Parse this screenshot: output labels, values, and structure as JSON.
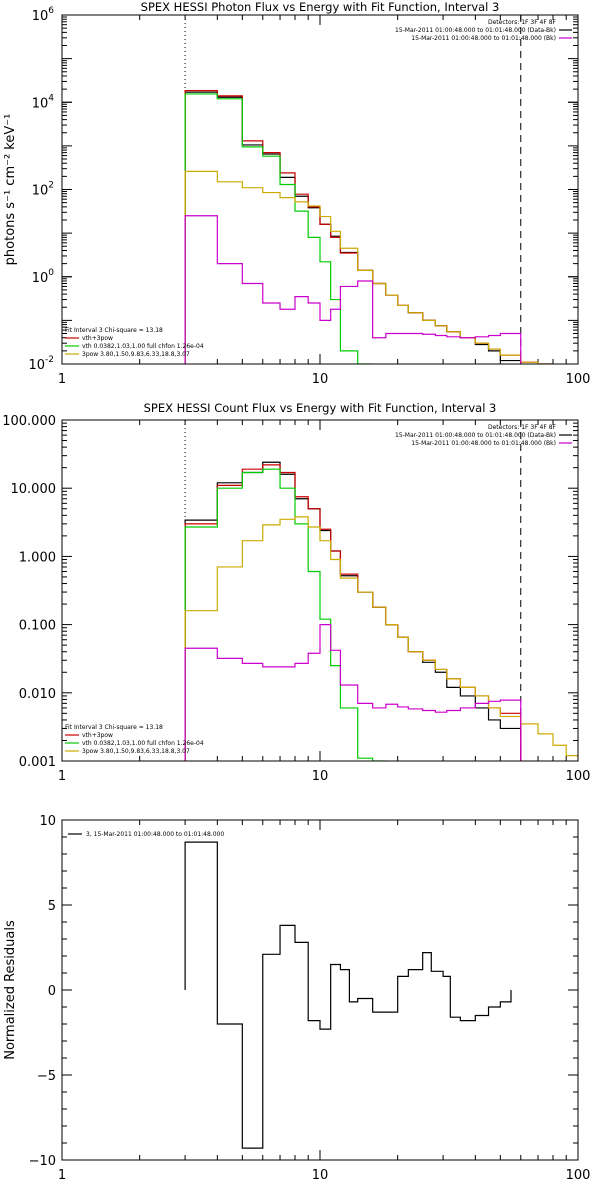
{
  "chart_data": [
    {
      "type": "line",
      "title": "SPEX HESSI Photon Flux vs Energy with Fit Function, Interval 3",
      "xlabel": "",
      "ylabel": "photons s⁻¹ cm⁻² keV⁻¹",
      "xscale": "log",
      "yscale": "log",
      "xlim": [
        1,
        100
      ],
      "ylim": [
        0.01,
        1000000
      ],
      "x_ticks": [
        {
          "value": 1,
          "label": "1"
        },
        {
          "value": 10,
          "label": "10"
        },
        {
          "value": 100,
          "label": "100"
        }
      ],
      "y_ticks": [
        {
          "value": 0.01,
          "base": "10",
          "exp": "-2"
        },
        {
          "value": 1,
          "base": "10",
          "exp": "0"
        },
        {
          "value": 100,
          "base": "10",
          "exp": "2"
        },
        {
          "value": 10000,
          "base": "10",
          "exp": "4"
        },
        {
          "value": 1000000,
          "base": "10",
          "exp": "6"
        }
      ],
      "legend_top_right": [
        {
          "text": "Detectors: 1F 3F 4F 8F",
          "color": "#000000"
        },
        {
          "text": "15-Mar-2011 01:00:48.000 to 01:01:48.000 (Data-Bk)",
          "color": "#000000"
        },
        {
          "text": "15-Mar-2011 01:00:48.000 to 01:01:48.000 (Bk)",
          "color": "#cc00cc"
        }
      ],
      "legend_bottom_left": [
        {
          "text": "Fit Interval 3   Chi-square = 13.18",
          "color": "#000000"
        },
        {
          "text": "vth+3pow",
          "color": "#cc0000"
        },
        {
          "text": "vth 0.0382,1.03,1.00  full chfon 1.26e-04",
          "color": "#00cc00"
        },
        {
          "text": "3pow 3.80,1.50,9.83,6.33,18.8,3.07",
          "color": "#ccaa00"
        }
      ],
      "markers": [
        {
          "x": 3,
          "style": "dotted"
        },
        {
          "x": 60,
          "style": "dashed"
        }
      ],
      "bin_edges": [
        3,
        4,
        5,
        6,
        7,
        8,
        9,
        10,
        11,
        12,
        14,
        16,
        18,
        20,
        22,
        25,
        28,
        31,
        35,
        40,
        45,
        50,
        60,
        70,
        80
      ],
      "series": [
        {
          "name": "Data-Bk",
          "color": "#000000",
          "values": [
            17000,
            13000,
            1050,
            650,
            190,
            70,
            38,
            16,
            8.5,
            3.6,
            1.4,
            0.7,
            0.38,
            0.22,
            0.15,
            0.1,
            0.075,
            0.055,
            0.04,
            0.028,
            0.02,
            0.012
          ]
        },
        {
          "name": "vth+3pow",
          "color": "#cc0000",
          "values": [
            18500,
            14000,
            1300,
            700,
            240,
            78,
            40,
            16,
            8,
            3.5,
            1.4,
            0.7,
            0.38,
            0.22,
            0.15,
            0.1,
            0.075,
            0.055,
            0.04,
            0.03,
            0.022,
            0.016,
            0.011,
            0.008
          ]
        },
        {
          "name": "vth",
          "color": "#00cc00",
          "values": [
            15500,
            12000,
            950,
            580,
            130,
            32,
            8,
            2.2,
            0.3,
            0.02,
            0.001
          ]
        },
        {
          "name": "3pow",
          "color": "#ccaa00",
          "values": [
            260,
            150,
            110,
            85,
            65,
            52,
            42,
            24,
            11,
            4.5,
            1.4,
            0.7,
            0.38,
            0.22,
            0.15,
            0.1,
            0.075,
            0.055,
            0.04,
            0.03,
            0.022,
            0.016,
            0.011,
            0.008
          ]
        },
        {
          "name": "Bk",
          "color": "#cc00cc",
          "values": [
            25,
            2,
            0.7,
            0.25,
            0.18,
            0.35,
            0.25,
            0.1,
            0.18,
            0.6,
            0.8,
            0.04,
            0.05,
            0.05,
            0.05,
            0.048,
            0.045,
            0.042,
            0.04,
            0.042,
            0.045,
            0.05
          ]
        }
      ]
    },
    {
      "type": "line",
      "title": "SPEX HESSI Count Flux vs Energy with Fit Function, Interval 3",
      "xlabel": "",
      "ylabel": "",
      "xscale": "log",
      "yscale": "log",
      "xlim": [
        1,
        100
      ],
      "ylim": [
        0.001,
        100
      ],
      "x_ticks": [
        {
          "value": 1,
          "label": "1"
        },
        {
          "value": 10,
          "label": "10"
        },
        {
          "value": 100,
          "label": "100"
        }
      ],
      "y_ticks": [
        {
          "value": 0.001,
          "label": "0.001"
        },
        {
          "value": 0.01,
          "label": "0.010"
        },
        {
          "value": 0.1,
          "label": "0.100"
        },
        {
          "value": 1,
          "label": "1.000"
        },
        {
          "value": 10,
          "label": "10.000"
        },
        {
          "value": 100,
          "label": "100.000"
        }
      ],
      "legend_top_right": [
        {
          "text": "Detectors: 1F 3F 4F 8F",
          "color": "#000000"
        },
        {
          "text": "15-Mar-2011 01:00:48.000 to 01:01:48.000 (Data-Bk)",
          "color": "#000000"
        },
        {
          "text": "15-Mar-2011 01:00:48.000 to 01:01:48.000 (Bk)",
          "color": "#cc00cc"
        }
      ],
      "legend_bottom_left": [
        {
          "text": "Fit Interval 3   Chi-square = 13.18",
          "color": "#000000"
        },
        {
          "text": "vth+3pow",
          "color": "#cc0000"
        },
        {
          "text": "vth 0.0382,1.03,1.00  full chfon 1.26e-04",
          "color": "#00cc00"
        },
        {
          "text": "3pow 3.80,1.50,9.83,6.33,18.8,3.07",
          "color": "#ccaa00"
        }
      ],
      "markers": [
        {
          "x": 3,
          "style": "dotted"
        },
        {
          "x": 60,
          "style": "dashed"
        }
      ],
      "bin_edges": [
        3,
        4,
        5,
        6,
        7,
        8,
        9,
        10,
        11,
        12,
        14,
        16,
        18,
        20,
        22,
        25,
        28,
        31,
        35,
        40,
        45,
        50,
        60,
        70,
        80,
        90,
        100
      ],
      "series": [
        {
          "name": "Data-Bk",
          "color": "#000000",
          "values": [
            3.4,
            12,
            17,
            24,
            16,
            7,
            5,
            2.4,
            1.2,
            0.52,
            0.3,
            0.18,
            0.1,
            0.065,
            0.04,
            0.028,
            0.02,
            0.012,
            0.009,
            0.006,
            0.004,
            0.003
          ]
        },
        {
          "name": "vth+3pow",
          "color": "#cc0000",
          "values": [
            3,
            11,
            19,
            22,
            17,
            7.5,
            5,
            2.5,
            1.2,
            0.55,
            0.3,
            0.18,
            0.1,
            0.065,
            0.04,
            0.03,
            0.022,
            0.016,
            0.012,
            0.009,
            0.006,
            0.005
          ]
        },
        {
          "name": "vth",
          "color": "#00cc00",
          "values": [
            2.7,
            10,
            17,
            19,
            10,
            3,
            0.6,
            0.12,
            0.025,
            0.006,
            0.0011,
            0.0005
          ]
        },
        {
          "name": "3pow",
          "color": "#ccaa00",
          "values": [
            0.16,
            0.7,
            1.7,
            2.9,
            3.5,
            3.8,
            2.7,
            1.7,
            0.9,
            0.48,
            0.3,
            0.18,
            0.1,
            0.065,
            0.04,
            0.03,
            0.022,
            0.016,
            0.012,
            0.009,
            0.006,
            0.0045,
            0.0035,
            0.0025,
            0.0017,
            0.0012
          ]
        },
        {
          "name": "Bk",
          "color": "#cc00cc",
          "values": [
            0.045,
            0.032,
            0.027,
            0.024,
            0.024,
            0.027,
            0.038,
            0.1,
            0.042,
            0.013,
            0.007,
            0.006,
            0.0068,
            0.0062,
            0.0058,
            0.0055,
            0.0052,
            0.0055,
            0.006,
            0.007,
            0.0075,
            0.0078
          ]
        }
      ]
    },
    {
      "type": "line",
      "title": "",
      "xlabel": "",
      "ylabel": "Normalized Residuals",
      "xscale": "log",
      "yscale": "linear",
      "xlim": [
        1,
        100
      ],
      "ylim": [
        -10,
        10
      ],
      "x_ticks": [
        {
          "value": 1,
          "label": "1"
        },
        {
          "value": 10,
          "label": "10"
        },
        {
          "value": 100,
          "label": "100"
        }
      ],
      "y_ticks": [
        {
          "value": -10,
          "label": "−10"
        },
        {
          "value": -5,
          "label": "−5"
        },
        {
          "value": 0,
          "label": "0"
        },
        {
          "value": 5,
          "label": "5"
        },
        {
          "value": 10,
          "label": "10"
        }
      ],
      "legend_top_left": [
        {
          "text": "3, 15-Mar-2011 01:00:48.000 to 01:01:48.000",
          "color": "#000000"
        }
      ],
      "bin_edges": [
        3,
        4,
        5,
        6,
        7,
        8,
        9,
        10,
        11,
        12,
        13,
        14,
        16,
        18,
        20,
        22,
        25,
        27,
        30,
        32,
        35,
        40,
        45,
        50,
        55,
        60
      ],
      "series": [
        {
          "name": "3, 15-Mar-2011 01:00:48.000 to 01:01:48.000",
          "color": "#000000",
          "values": [
            8.7,
            -2,
            -9.3,
            2.1,
            3.8,
            2.8,
            -1.8,
            -2.3,
            1.5,
            1.2,
            -0.7,
            -0.5,
            -1.3,
            -1.3,
            0.8,
            1.2,
            2.2,
            1.1,
            0.8,
            -1.6,
            -1.8,
            -1.5,
            -1.0,
            -0.7
          ]
        }
      ]
    }
  ]
}
